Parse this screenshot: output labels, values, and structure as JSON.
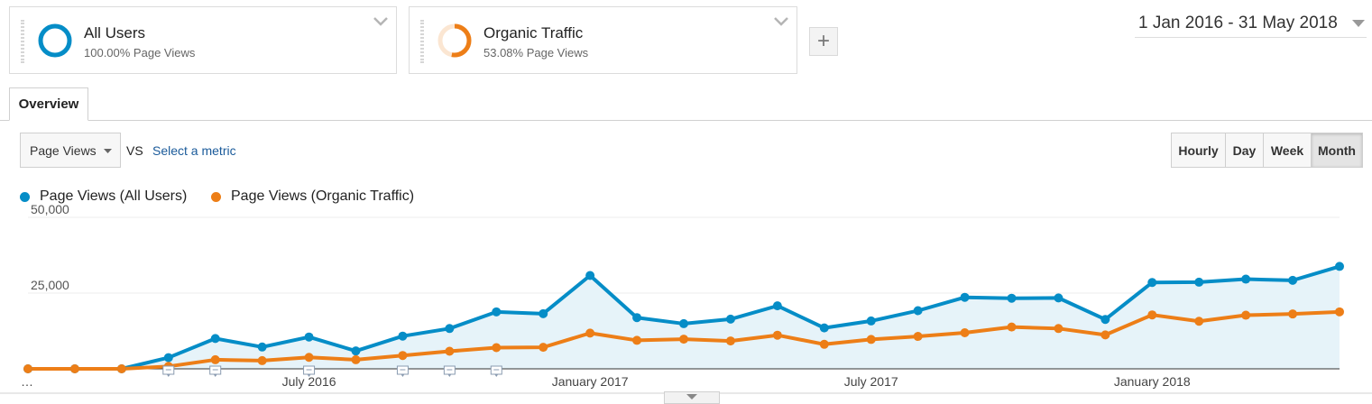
{
  "segments": [
    {
      "title": "All Users",
      "subtitle": "100.00% Page Views",
      "color": "#058dc7",
      "ring_fill": 1.0
    },
    {
      "title": "Organic Traffic",
      "subtitle": "53.08% Page Views",
      "color": "#ed7e17",
      "ring_fill": 0.5308
    }
  ],
  "add_segment_label": "+",
  "date_range": "1 Jan 2016 - 31 May 2018",
  "tabs": [
    {
      "label": "Overview",
      "active": true
    }
  ],
  "metric_picker": {
    "selected": "Page Views",
    "vs_label": "VS",
    "select_metric_link": "Select a metric"
  },
  "granularity": {
    "options": [
      "Hourly",
      "Day",
      "Week",
      "Month"
    ],
    "active": "Month"
  },
  "legend": [
    {
      "label": "Page Views (All Users)",
      "color": "#058dc7"
    },
    {
      "label": "Page Views (Organic Traffic)",
      "color": "#ed7e17"
    }
  ],
  "chart_data": {
    "type": "line",
    "x": [
      "2016-01",
      "2016-02",
      "2016-03",
      "2016-04",
      "2016-05",
      "2016-06",
      "2016-07",
      "2016-08",
      "2016-09",
      "2016-10",
      "2016-11",
      "2016-12",
      "2017-01",
      "2017-02",
      "2017-03",
      "2017-04",
      "2017-05",
      "2017-06",
      "2017-07",
      "2017-08",
      "2017-09",
      "2017-10",
      "2017-11",
      "2017-12",
      "2018-01",
      "2018-02",
      "2018-03",
      "2018-04",
      "2018-05"
    ],
    "x_tick_labels": [
      "…",
      "July 2016",
      "January 2017",
      "July 2017",
      "January 2018"
    ],
    "y_tick_labels": [
      "50,000",
      "25,000"
    ],
    "ylim": [
      0,
      50000
    ],
    "series": [
      {
        "name": "Page Views (All Users)",
        "color": "#058dc7",
        "area": true,
        "values": [
          0,
          0,
          0,
          3700,
          10000,
          7200,
          10500,
          5900,
          10800,
          13300,
          18800,
          18200,
          30800,
          16900,
          14900,
          16400,
          20800,
          13500,
          15800,
          19200,
          23600,
          23300,
          23400,
          16300,
          28500,
          28600,
          29600,
          29200,
          33800
        ]
      },
      {
        "name": "Page Views (Organic Traffic)",
        "color": "#ed7e17",
        "area": false,
        "values": [
          0,
          0,
          0,
          800,
          3000,
          2700,
          3800,
          3000,
          4400,
          5800,
          7000,
          7100,
          11800,
          9400,
          9800,
          9200,
          11100,
          8100,
          9700,
          10700,
          11900,
          13800,
          13300,
          11200,
          17800,
          15700,
          17700,
          18100,
          18800
        ]
      }
    ],
    "annotations_months": [
      "2016-04",
      "2016-05",
      "2016-07",
      "2016-09",
      "2016-10",
      "2016-11"
    ],
    "grid": true
  }
}
